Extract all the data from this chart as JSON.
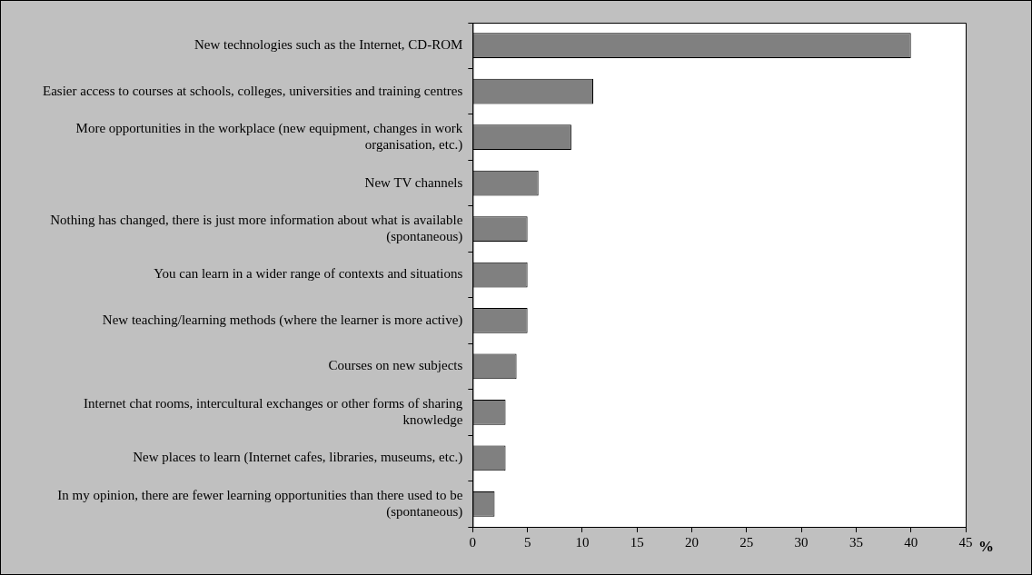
{
  "chart_data": {
    "type": "bar",
    "orientation": "horizontal",
    "xlabel": "%",
    "categories": [
      "New technologies such as the Internet, CD-ROM",
      "Easier access to courses at schools, colleges, universities and training centres",
      "More opportunities in the workplace (new equipment, changes in work organisation, etc.)",
      "New TV channels",
      "Nothing has changed, there is just more information about what is available (spontaneous)",
      "You can learn in a wider range of contexts and situations",
      "New teaching/learning methods (where the learner is more active)",
      "Courses on new subjects",
      "Internet chat rooms, intercultural exchanges or other forms of sharing knowledge",
      "New places to learn (Internet cafes, libraries, museums, etc.)",
      "In my opinion, there are fewer learning opportunities than there used to be (spontaneous)"
    ],
    "values": [
      40,
      11,
      9,
      6,
      5,
      5,
      5,
      4,
      3,
      3,
      2
    ],
    "color": "#808080",
    "xlim": [
      0,
      45
    ],
    "xticks": [
      0,
      5,
      10,
      15,
      20,
      25,
      30,
      35,
      40,
      45
    ],
    "grid": false,
    "legend": false
  }
}
